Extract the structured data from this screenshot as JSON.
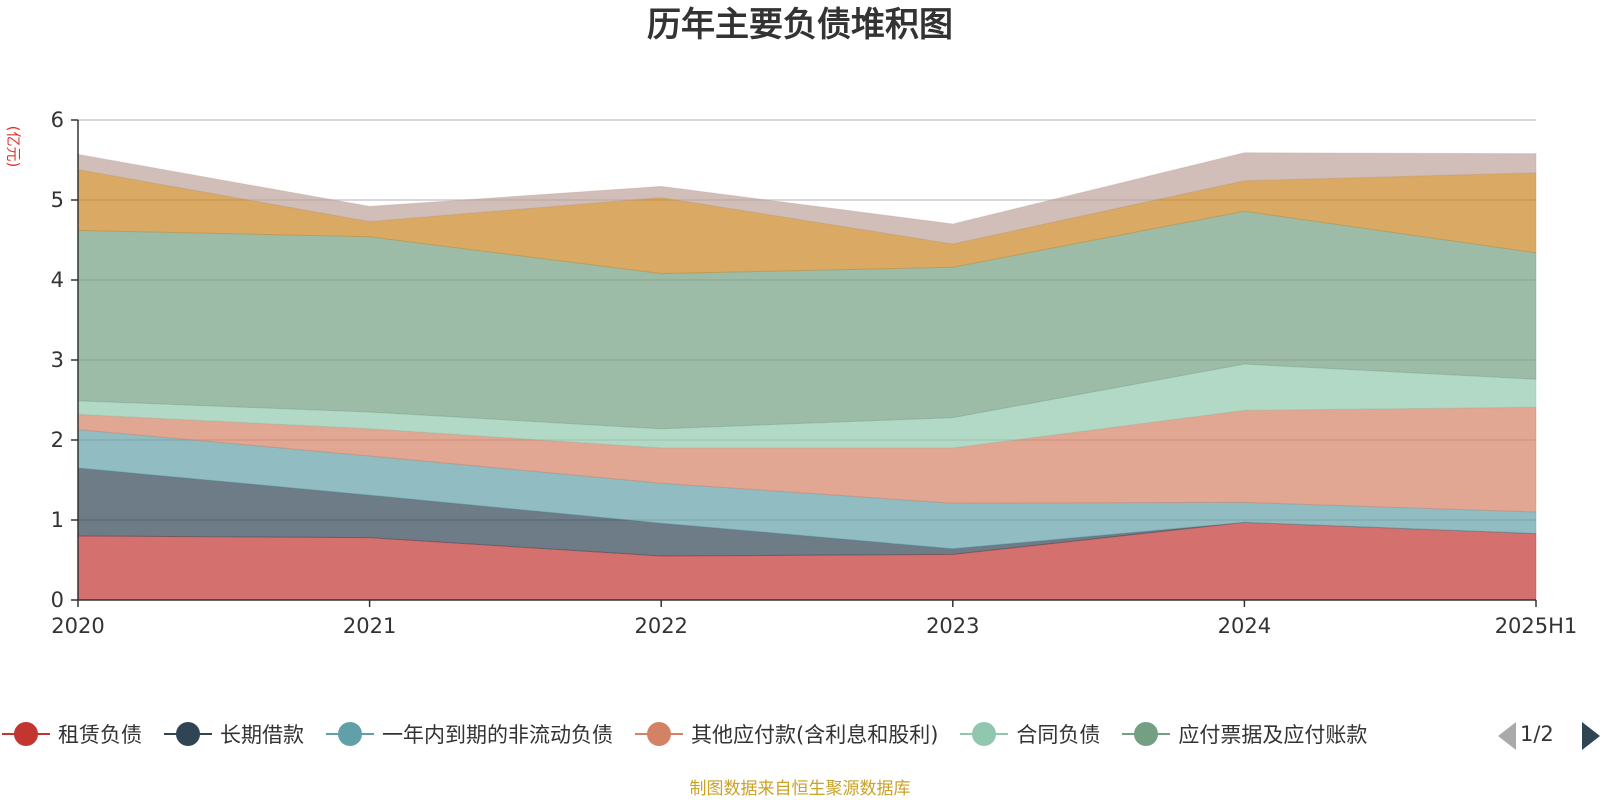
{
  "title": "历年主要负债堆积图",
  "y_unit": "(亿元)",
  "source_note": "制图数据来自恒生聚源数据库",
  "legend": {
    "page_indicator": "1/2"
  },
  "chart_data": {
    "type": "area",
    "stacked": true,
    "title": "历年主要负债堆积图",
    "ylabel": "(亿元)",
    "ylim": [
      0,
      6
    ],
    "y_ticks": [
      0,
      1,
      2,
      3,
      4,
      5,
      6
    ],
    "grid": true,
    "legend_position": "bottom",
    "categories": [
      "2020",
      "2021",
      "2022",
      "2023",
      "2024",
      "2025H1"
    ],
    "series": [
      {
        "name": "租赁负债",
        "color": "#c23531",
        "values": [
          0.8,
          0.78,
          0.55,
          0.57,
          0.97,
          0.83
        ]
      },
      {
        "name": "长期借款",
        "color": "#2f4554",
        "values": [
          0.85,
          0.53,
          0.41,
          0.07,
          0.0,
          0.0
        ]
      },
      {
        "name": "一年内到期的非流动负债",
        "color": "#61a0a8",
        "values": [
          0.48,
          0.49,
          0.5,
          0.57,
          0.25,
          0.27
        ]
      },
      {
        "name": "其他应付款(含利息和股利)",
        "color": "#d48265",
        "values": [
          0.19,
          0.34,
          0.44,
          0.69,
          1.15,
          1.31
        ]
      },
      {
        "name": "合同负债",
        "color": "#91c7ae",
        "values": [
          0.17,
          0.21,
          0.24,
          0.38,
          0.58,
          0.35
        ]
      },
      {
        "name": "应付票据及应付账款",
        "color": "#749f83",
        "values": [
          2.13,
          2.19,
          1.94,
          1.88,
          1.91,
          1.58
        ]
      },
      {
        "name": "",
        "color": "#ca8622",
        "values": [
          0.76,
          0.19,
          0.95,
          0.29,
          0.38,
          1.0
        ]
      },
      {
        "name": "",
        "color": "#bda29a",
        "values": [
          0.19,
          0.19,
          0.14,
          0.25,
          0.35,
          0.24
        ]
      }
    ]
  }
}
